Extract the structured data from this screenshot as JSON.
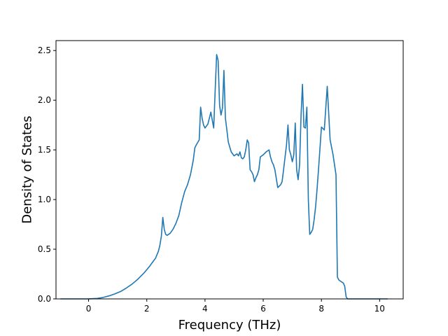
{
  "chart_data": {
    "type": "line",
    "title": "",
    "xlabel": "Frequency (THz)",
    "ylabel": "Density of States",
    "xlim": [
      -1.12,
      10.81
    ],
    "ylim": [
      0,
      2.6
    ],
    "xticks": [
      0,
      2,
      4,
      6,
      8,
      10
    ],
    "yticks": [
      0.0,
      0.5,
      1.0,
      1.5,
      2.0,
      2.5
    ],
    "xtick_labels": [
      "0",
      "2",
      "4",
      "6",
      "8",
      "10"
    ],
    "ytick_labels": [
      "0.0",
      "0.5",
      "1.0",
      "1.5",
      "2.0",
      "2.5"
    ],
    "grid": false,
    "line_color": "#1f77b4",
    "series": [
      {
        "x": [
          -0.97,
          -0.5,
          0.0,
          0.3,
          0.5,
          0.7,
          0.9,
          1.1,
          1.3,
          1.5,
          1.7,
          1.9,
          2.1,
          2.2,
          2.3,
          2.4,
          2.45,
          2.5,
          2.55,
          2.6,
          2.65,
          2.7,
          2.8,
          2.9,
          3.0,
          3.1,
          3.2,
          3.3,
          3.4,
          3.5,
          3.6,
          3.65,
          3.7,
          3.8,
          3.85,
          3.9,
          3.95,
          4.0,
          4.1,
          4.2,
          4.3,
          4.35,
          4.4,
          4.45,
          4.5,
          4.55,
          4.6,
          4.65,
          4.7,
          4.75,
          4.8,
          4.9,
          5.0,
          5.1,
          5.15,
          5.2,
          5.25,
          5.3,
          5.35,
          5.4,
          5.45,
          5.5,
          5.55,
          5.6,
          5.65,
          5.7,
          5.75,
          5.8,
          5.85,
          5.9,
          6.0,
          6.1,
          6.2,
          6.25,
          6.3,
          6.35,
          6.4,
          6.5,
          6.6,
          6.65,
          6.7,
          6.8,
          6.85,
          6.9,
          6.95,
          7.0,
          7.05,
          7.1,
          7.15,
          7.2,
          7.25,
          7.3,
          7.35,
          7.4,
          7.45,
          7.5,
          7.55,
          7.6,
          7.65,
          7.7,
          7.75,
          7.8,
          7.85,
          7.9,
          8.0,
          8.1,
          8.2,
          8.3,
          8.4,
          8.5,
          8.55,
          8.6,
          8.65,
          8.7,
          8.75,
          8.8,
          8.85,
          8.9,
          9.0,
          9.1,
          9.2,
          9.25,
          9.3,
          9.35,
          9.4,
          9.6,
          9.8,
          10.0,
          10.28
        ],
        "y": [
          0.0,
          0.0,
          0.0,
          0.005,
          0.015,
          0.03,
          0.05,
          0.075,
          0.11,
          0.15,
          0.2,
          0.26,
          0.33,
          0.37,
          0.41,
          0.48,
          0.54,
          0.63,
          0.82,
          0.7,
          0.65,
          0.64,
          0.66,
          0.7,
          0.76,
          0.84,
          0.97,
          1.08,
          1.15,
          1.25,
          1.4,
          1.52,
          1.55,
          1.6,
          1.93,
          1.82,
          1.75,
          1.72,
          1.76,
          1.88,
          1.72,
          2.1,
          2.46,
          2.4,
          1.95,
          1.85,
          1.92,
          2.3,
          1.82,
          1.7,
          1.58,
          1.48,
          1.44,
          1.46,
          1.44,
          1.48,
          1.42,
          1.41,
          1.43,
          1.5,
          1.6,
          1.57,
          1.3,
          1.28,
          1.25,
          1.18,
          1.22,
          1.25,
          1.3,
          1.43,
          1.45,
          1.48,
          1.5,
          1.43,
          1.38,
          1.35,
          1.3,
          1.12,
          1.15,
          1.18,
          1.3,
          1.55,
          1.75,
          1.5,
          1.45,
          1.38,
          1.45,
          1.77,
          1.3,
          1.2,
          1.35,
          1.85,
          2.16,
          1.73,
          1.72,
          1.93,
          1.0,
          0.65,
          0.67,
          0.7,
          0.8,
          0.93,
          1.1,
          1.3,
          1.73,
          1.7,
          2.14,
          1.6,
          1.45,
          1.25,
          0.22,
          0.19,
          0.18,
          0.17,
          0.16,
          0.13,
          0.02,
          0.0,
          0.0,
          0.0,
          0.0,
          0.0,
          0.0,
          0.0,
          0.0,
          0.0,
          0.0,
          0.0,
          0.0
        ]
      }
    ]
  }
}
